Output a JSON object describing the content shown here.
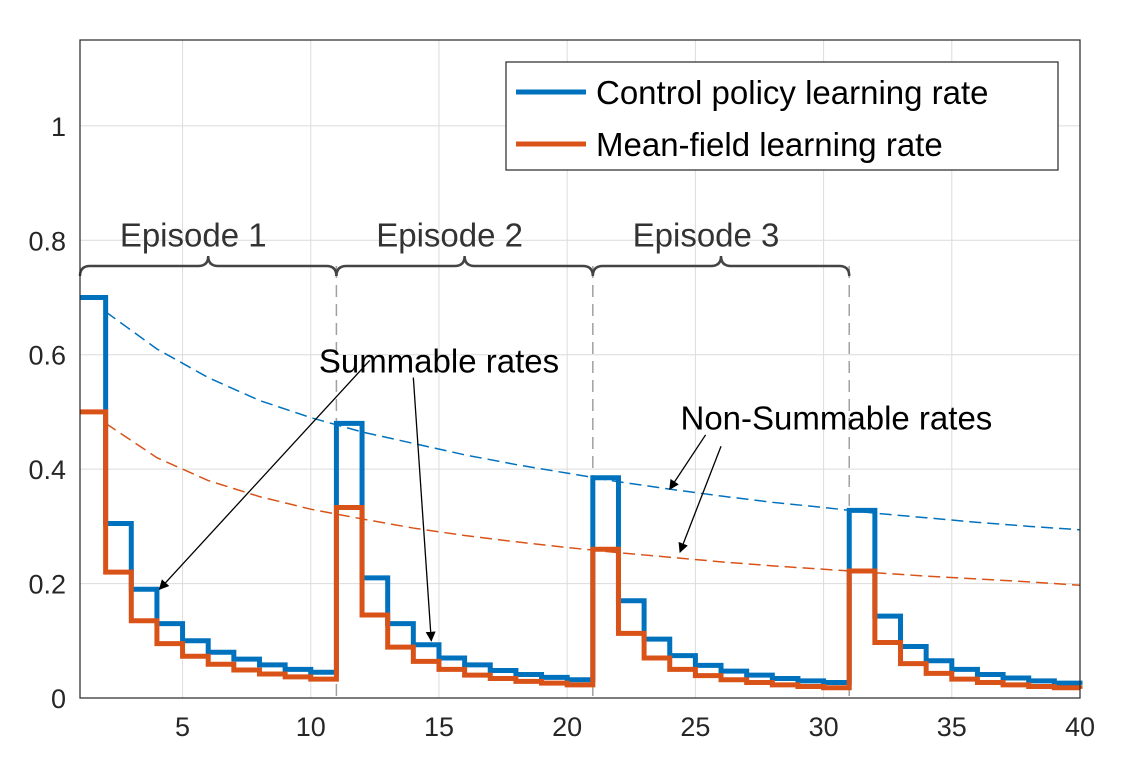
{
  "chart_data": {
    "type": "line",
    "title": "",
    "xlabel": "",
    "ylabel": "",
    "xlim": [
      1,
      40
    ],
    "ylim": [
      0,
      1.15
    ],
    "xticks": [
      5,
      10,
      15,
      20,
      25,
      30,
      35,
      40
    ],
    "yticks": [
      0,
      0.2,
      0.4,
      0.6,
      0.8,
      1
    ],
    "ytick_labels": [
      "0",
      "0.2",
      "0.4",
      "0.6",
      "0.8",
      "1"
    ],
    "grid": true,
    "legend_position": "top-right",
    "series": [
      {
        "name": "Control policy learning rate",
        "style": "stairs",
        "color": "#0072BD",
        "x": [
          1,
          2,
          3,
          4,
          5,
          6,
          7,
          8,
          9,
          10,
          11,
          12,
          13,
          14,
          15,
          16,
          17,
          18,
          19,
          20,
          21,
          22,
          23,
          24,
          25,
          26,
          27,
          28,
          29,
          30,
          31,
          32,
          33,
          34,
          35,
          36,
          37,
          38,
          39,
          40
        ],
        "values": [
          0.7,
          0.305,
          0.19,
          0.13,
          0.1,
          0.08,
          0.068,
          0.058,
          0.05,
          0.045,
          0.48,
          0.21,
          0.13,
          0.093,
          0.07,
          0.058,
          0.048,
          0.041,
          0.036,
          0.032,
          0.385,
          0.17,
          0.103,
          0.074,
          0.057,
          0.047,
          0.04,
          0.034,
          0.03,
          0.027,
          0.328,
          0.143,
          0.09,
          0.065,
          0.05,
          0.041,
          0.035,
          0.03,
          0.026,
          0.023
        ]
      },
      {
        "name": "Mean-field learning rate",
        "style": "stairs",
        "color": "#D95319",
        "x": [
          1,
          2,
          3,
          4,
          5,
          6,
          7,
          8,
          9,
          10,
          11,
          12,
          13,
          14,
          15,
          16,
          17,
          18,
          19,
          20,
          21,
          22,
          23,
          24,
          25,
          26,
          27,
          28,
          29,
          30,
          31,
          32,
          33,
          34,
          35,
          36,
          37,
          38,
          39,
          40
        ],
        "values": [
          0.5,
          0.22,
          0.135,
          0.095,
          0.073,
          0.059,
          0.049,
          0.042,
          0.037,
          0.033,
          0.333,
          0.145,
          0.089,
          0.064,
          0.05,
          0.04,
          0.034,
          0.029,
          0.026,
          0.023,
          0.26,
          0.113,
          0.07,
          0.05,
          0.039,
          0.032,
          0.027,
          0.023,
          0.02,
          0.018,
          0.222,
          0.097,
          0.06,
          0.043,
          0.033,
          0.027,
          0.023,
          0.02,
          0.018,
          0.016
        ]
      },
      {
        "name": "",
        "style": "dashed",
        "color": "#0072BD",
        "x": [
          2,
          4,
          6,
          8,
          10,
          12,
          14,
          16,
          18,
          20,
          22,
          24,
          26,
          28,
          30,
          32,
          34,
          36,
          38,
          40
        ],
        "values": [
          0.675,
          0.61,
          0.56,
          0.52,
          0.49,
          0.465,
          0.445,
          0.425,
          0.408,
          0.393,
          0.378,
          0.365,
          0.353,
          0.342,
          0.333,
          0.323,
          0.315,
          0.307,
          0.3,
          0.294
        ]
      },
      {
        "name": "",
        "style": "dashed",
        "color": "#D95319",
        "x": [
          2,
          4,
          6,
          8,
          10,
          12,
          14,
          16,
          18,
          20,
          22,
          24,
          26,
          28,
          30,
          32,
          34,
          36,
          38,
          40
        ],
        "values": [
          0.48,
          0.42,
          0.38,
          0.352,
          0.33,
          0.313,
          0.297,
          0.284,
          0.273,
          0.263,
          0.254,
          0.246,
          0.238,
          0.231,
          0.225,
          0.219,
          0.213,
          0.208,
          0.203,
          0.197
        ]
      }
    ],
    "episodes": [
      {
        "label": "Episode 1",
        "start": 1,
        "end": 11
      },
      {
        "label": "Episode 2",
        "start": 11,
        "end": 21
      },
      {
        "label": "Episode 3",
        "start": 21,
        "end": 31
      }
    ],
    "episode_brace_y": 0.755,
    "episode_label_y": 0.81,
    "episode_boundaries": [
      11,
      21,
      31
    ],
    "annotations": [
      {
        "text": "Summable rates",
        "text_anchor": [
          15,
          0.59
        ],
        "arrows": [
          {
            "from": [
              12.3,
              0.59
            ],
            "to": [
              4.1,
              0.19
            ]
          },
          {
            "from": [
              14.0,
              0.56
            ],
            "to": [
              14.7,
              0.1
            ]
          }
        ]
      },
      {
        "text": "Non-Summable rates",
        "text_anchor": [
          30.5,
          0.49
        ],
        "arrows": [
          {
            "from": [
              25.4,
              0.46
            ],
            "to": [
              24.0,
              0.365
            ]
          },
          {
            "from": [
              26.0,
              0.44
            ],
            "to": [
              24.4,
              0.255
            ]
          }
        ]
      }
    ]
  }
}
